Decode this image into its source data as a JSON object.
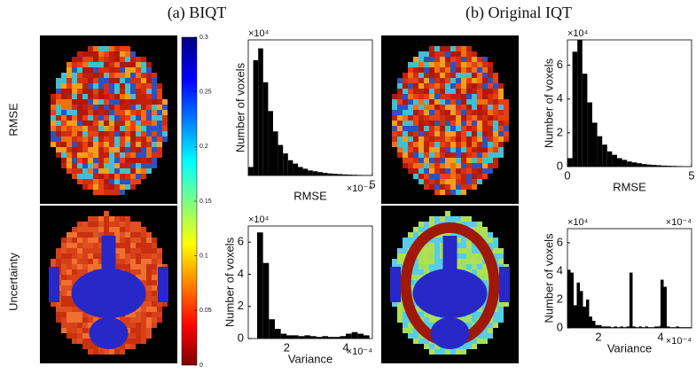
{
  "columns": [
    {
      "title": "(a) BIQT"
    },
    {
      "title": "(b) Original IQT"
    }
  ],
  "row_labels": [
    "RMSE",
    "Uncertainty"
  ],
  "colorbar": {
    "ticks": [
      0,
      0.05,
      0.1,
      0.15,
      0.2,
      0.25,
      0.3
    ],
    "lim": [
      0,
      0.3
    ]
  },
  "chart_data": [
    {
      "type": "histogram",
      "xlabel": "RMSE",
      "ylabel": "Number of voxels",
      "y_scale_label": "×10⁴",
      "x_scale_label": "×10⁻⁴",
      "color": "#000000",
      "bins": [
        0,
        0.2,
        0.4,
        0.6,
        0.8,
        1.0,
        1.2,
        1.4,
        1.6,
        1.8,
        2.0,
        2.2,
        2.4,
        2.6,
        2.8,
        3.0,
        3.2,
        3.4,
        3.6,
        3.8,
        4.0,
        4.2,
        4.4,
        4.6,
        4.8,
        5.0
      ],
      "values": [
        0.5,
        6.8,
        7.5,
        5.5,
        3.8,
        2.6,
        1.8,
        1.3,
        0.9,
        0.7,
        0.5,
        0.4,
        0.3,
        0.25,
        0.2,
        0.15,
        0.12,
        0.1,
        0.08,
        0.06,
        0.05,
        0.04,
        0.03,
        0.02,
        0.02
      ],
      "xlim": [
        0,
        5
      ],
      "ylim": [
        0,
        8
      ],
      "xticks": [
        5
      ],
      "yticks": []
    },
    {
      "type": "histogram",
      "xlabel": "Variance",
      "ylabel": "Number of voxels",
      "y_scale_label": "×10⁴",
      "x_scale_label": "×10⁻⁴",
      "color": "#000000",
      "bins": [
        1.0,
        1.2,
        1.4,
        1.6,
        1.8,
        2.0,
        2.2,
        2.4,
        2.6,
        2.8,
        3.0,
        3.2,
        3.4,
        3.6,
        3.8,
        4.0,
        4.2,
        4.4,
        4.6,
        4.8
      ],
      "values": [
        6.6,
        4.7,
        1.2,
        0.6,
        0.3,
        0.2,
        0.2,
        0.15,
        0.2,
        0.15,
        0.1,
        0.15,
        0.1,
        0.1,
        0.15,
        0.3,
        0.4,
        0.3,
        0.2
      ],
      "xlim": [
        0.7,
        4.9
      ],
      "ylim": [
        0,
        7
      ],
      "xticks": [
        2,
        4
      ],
      "yticks": [
        0,
        2,
        4,
        6
      ]
    },
    {
      "type": "histogram",
      "xlabel": "RMSE",
      "ylabel": "Number of voxels",
      "y_scale_label": "×10⁴",
      "color": "#000000",
      "bins": [
        0,
        0.2,
        0.4,
        0.6,
        0.8,
        1.0,
        1.2,
        1.4,
        1.6,
        1.8,
        2.0,
        2.2,
        2.4,
        2.6,
        2.8,
        3.0,
        3.2,
        3.4,
        3.6,
        3.8,
        4.0,
        4.2,
        4.4,
        4.6,
        4.8,
        5.0
      ],
      "values": [
        0.5,
        6.8,
        7.5,
        5.5,
        3.8,
        2.6,
        1.8,
        1.3,
        0.9,
        0.7,
        0.5,
        0.4,
        0.3,
        0.25,
        0.2,
        0.15,
        0.12,
        0.1,
        0.08,
        0.06,
        0.05,
        0.04,
        0.03,
        0.02,
        0.02
      ],
      "xlim": [
        0,
        5
      ],
      "ylim": [
        0,
        7.5
      ],
      "xticks": [
        0,
        5
      ],
      "yticks": [
        0,
        2,
        4,
        6
      ]
    },
    {
      "type": "histogram",
      "xlabel": "Variance",
      "ylabel": "Number of voxels",
      "y_scale_label": "×10⁴",
      "x_scale_label": "×10⁻⁴",
      "x_scale_label_top": "×10⁻⁴",
      "color": "#000000",
      "bins": [
        1.0,
        1.1,
        1.2,
        1.3,
        1.4,
        1.5,
        1.6,
        1.7,
        1.8,
        1.9,
        2.0,
        2.1,
        2.2,
        2.3,
        2.4,
        2.5,
        2.6,
        2.7,
        2.8,
        2.9,
        3.0,
        3.1,
        3.2,
        3.3,
        3.4,
        3.5,
        3.6,
        3.7,
        3.8,
        3.9,
        4.0,
        4.1,
        4.2,
        4.3,
        4.4,
        4.5,
        4.6,
        4.7,
        4.8,
        4.9,
        5.0
      ],
      "values": [
        4.1,
        3.9,
        1.6,
        3.2,
        2.6,
        1.5,
        2.0,
        0.8,
        0.5,
        0.2,
        0.2,
        0.1,
        0.1,
        0.1,
        0.05,
        0.1,
        0.05,
        0.1,
        0.05,
        0.1,
        3.9,
        0.1,
        0.05,
        0.1,
        0.05,
        0.1,
        0.05,
        0.05,
        0.1,
        0.1,
        3.4,
        2.9,
        0.1,
        0.05,
        0.05,
        0.1,
        0.05,
        0.05,
        0.05,
        0.05
      ],
      "xlim": [
        1,
        5
      ],
      "ylim": [
        0,
        7
      ],
      "xticks": [
        2,
        4
      ],
      "yticks": [
        0,
        2,
        4,
        6
      ]
    }
  ]
}
